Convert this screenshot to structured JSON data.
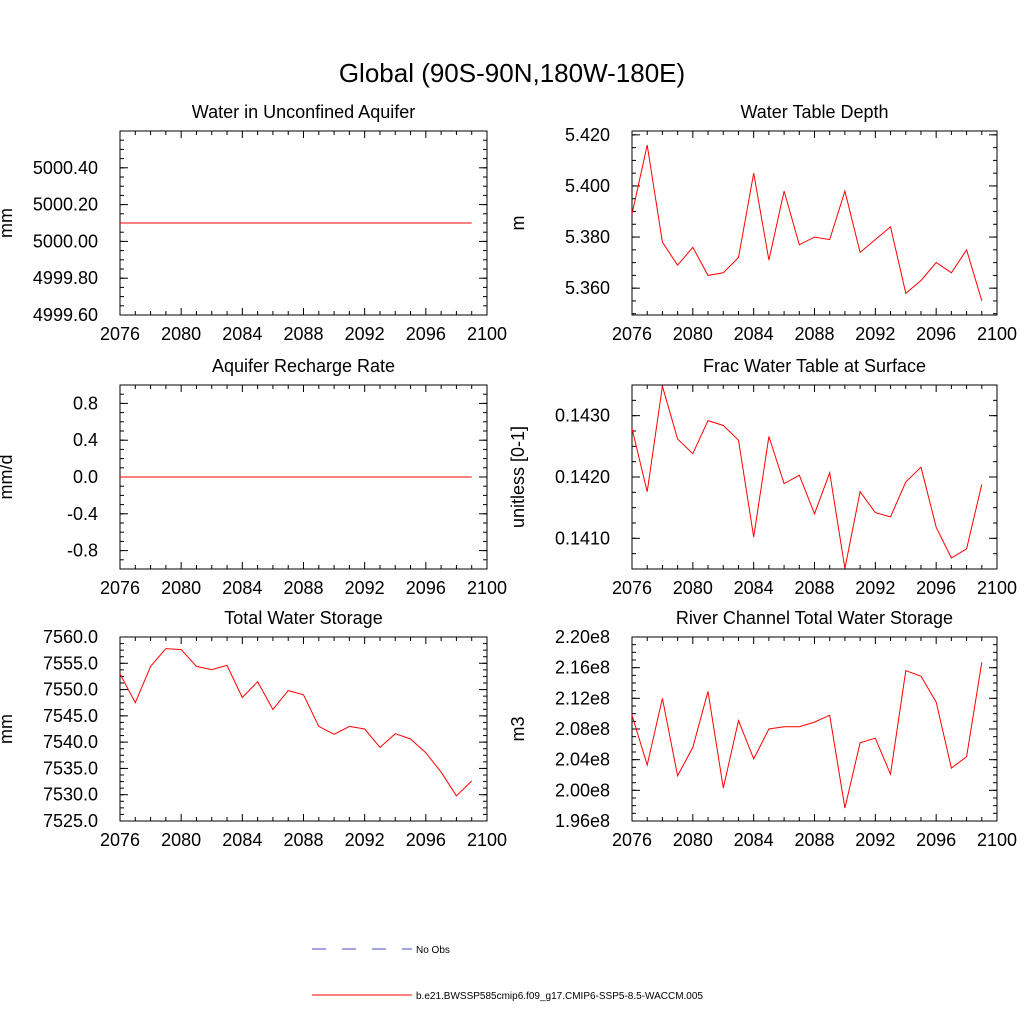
{
  "page_title": "Global (90S-90N,180W-180E)",
  "colors": {
    "series": "#ff0000",
    "obs": "#4a4acc",
    "axis": "#000000"
  },
  "legend": {
    "obs_label": "No Obs",
    "model_label": "b.e21.BWSSP585cmip6.f09_g17.CMIP6-SSP5-8.5-WACCM.005"
  },
  "chart_data": [
    {
      "type": "line",
      "title": "Water in Unconfined Aquifer",
      "ylabel": "mm",
      "xlim": [
        2076,
        2100
      ],
      "ylim": [
        4999.6,
        5000.6
      ],
      "xticks": [
        2076,
        2080,
        2084,
        2088,
        2092,
        2096,
        2100
      ],
      "yticks": [
        4999.6,
        4999.8,
        5000.0,
        5000.2,
        5000.4
      ],
      "ytick_labels": [
        "4999.60",
        "4999.80",
        "5000.00",
        "5000.20",
        "5000.40"
      ],
      "x": [
        2076,
        2077,
        2078,
        2079,
        2080,
        2081,
        2082,
        2083,
        2084,
        2085,
        2086,
        2087,
        2088,
        2089,
        2090,
        2091,
        2092,
        2093,
        2094,
        2095,
        2096,
        2097,
        2098,
        2099
      ],
      "values": [
        5000.1,
        5000.1,
        5000.1,
        5000.1,
        5000.1,
        5000.1,
        5000.1,
        5000.1,
        5000.1,
        5000.1,
        5000.1,
        5000.1,
        5000.1,
        5000.1,
        5000.1,
        5000.1,
        5000.1,
        5000.1,
        5000.1,
        5000.1,
        5000.1,
        5000.1,
        5000.1,
        5000.1
      ]
    },
    {
      "type": "line",
      "title": "Water Table Depth",
      "ylabel": "m",
      "xlim": [
        2076,
        2100
      ],
      "ylim": [
        5.3495,
        5.4215
      ],
      "xticks": [
        2076,
        2080,
        2084,
        2088,
        2092,
        2096,
        2100
      ],
      "yticks": [
        5.36,
        5.38,
        5.4,
        5.42
      ],
      "ytick_labels": [
        "5.360",
        "5.380",
        "5.400",
        "5.420"
      ],
      "x": [
        2076,
        2077,
        2078,
        2079,
        2080,
        2081,
        2082,
        2083,
        2084,
        2085,
        2086,
        2087,
        2088,
        2089,
        2090,
        2091,
        2092,
        2093,
        2094,
        2095,
        2096,
        2097,
        2098,
        2099
      ],
      "values": [
        5.389,
        5.416,
        5.378,
        5.369,
        5.376,
        5.365,
        5.366,
        5.372,
        5.405,
        5.371,
        5.398,
        5.377,
        5.38,
        5.379,
        5.398,
        5.374,
        5.379,
        5.384,
        5.358,
        5.363,
        5.37,
        5.366,
        5.375,
        5.355
      ]
    },
    {
      "type": "line",
      "title": "Aquifer Recharge Rate",
      "ylabel": "mm/d",
      "xlim": [
        2076,
        2100
      ],
      "ylim": [
        -1.0,
        1.0
      ],
      "xticks": [
        2076,
        2080,
        2084,
        2088,
        2092,
        2096,
        2100
      ],
      "yticks": [
        -0.8,
        -0.4,
        0.0,
        0.4,
        0.8
      ],
      "ytick_labels": [
        "-0.8",
        "-0.4",
        "0.0",
        "0.4",
        "0.8"
      ],
      "x": [
        2076,
        2077,
        2078,
        2079,
        2080,
        2081,
        2082,
        2083,
        2084,
        2085,
        2086,
        2087,
        2088,
        2089,
        2090,
        2091,
        2092,
        2093,
        2094,
        2095,
        2096,
        2097,
        2098,
        2099
      ],
      "values": [
        0,
        0,
        0,
        0,
        0,
        0,
        0,
        0,
        0,
        0,
        0,
        0,
        0,
        0,
        0,
        0,
        0,
        0,
        0,
        0,
        0,
        0,
        0,
        0
      ]
    },
    {
      "type": "line",
      "title": "Frac Water Table at Surface",
      "ylabel": "unitless [0-1]",
      "xlim": [
        2076,
        2100
      ],
      "ylim": [
        0.1405,
        0.1435
      ],
      "xticks": [
        2076,
        2080,
        2084,
        2088,
        2092,
        2096,
        2100
      ],
      "yticks": [
        0.141,
        0.142,
        0.143
      ],
      "ytick_labels": [
        "0.1410",
        "0.1420",
        "0.1430"
      ],
      "x": [
        2076,
        2077,
        2078,
        2079,
        2080,
        2081,
        2082,
        2083,
        2084,
        2085,
        2086,
        2087,
        2088,
        2089,
        2090,
        2091,
        2092,
        2093,
        2094,
        2095,
        2096,
        2097,
        2098,
        2099
      ],
      "values": [
        0.14279,
        0.14176,
        0.14348,
        0.14262,
        0.14238,
        0.14292,
        0.14284,
        0.1426,
        0.14102,
        0.14266,
        0.14189,
        0.14203,
        0.1414,
        0.14207,
        0.14051,
        0.14176,
        0.14142,
        0.14135,
        0.14192,
        0.14216,
        0.14118,
        0.14068,
        0.14083,
        0.14188
      ]
    },
    {
      "type": "line",
      "title": "Total Water Storage",
      "ylabel": "mm",
      "xlim": [
        2076,
        2100
      ],
      "ylim": [
        7525.0,
        7560.0
      ],
      "xticks": [
        2076,
        2080,
        2084,
        2088,
        2092,
        2096,
        2100
      ],
      "yticks": [
        7525,
        7530,
        7535,
        7540,
        7545,
        7550,
        7555,
        7560
      ],
      "ytick_labels": [
        "7525.0",
        "7530.0",
        "7535.0",
        "7540.0",
        "7545.0",
        "7550.0",
        "7555.0",
        "7560.0"
      ],
      "x": [
        2076,
        2077,
        2078,
        2079,
        2080,
        2081,
        2082,
        2083,
        2084,
        2085,
        2086,
        2087,
        2088,
        2089,
        2090,
        2091,
        2092,
        2093,
        2094,
        2095,
        2096,
        2097,
        2098,
        2099
      ],
      "values": [
        7553.0,
        7547.5,
        7554.4,
        7557.8,
        7557.6,
        7554.4,
        7553.8,
        7554.6,
        7548.5,
        7551.5,
        7546.2,
        7549.8,
        7549.0,
        7543.0,
        7541.5,
        7543.0,
        7542.5,
        7539.0,
        7541.6,
        7540.6,
        7538.0,
        7534.3,
        7529.8,
        7532.6
      ]
    },
    {
      "type": "line",
      "title": "River Channel Total Water Storage",
      "ylabel": "m3",
      "xlim": [
        2076,
        2100
      ],
      "ylim": [
        196000000,
        220000000
      ],
      "xticks": [
        2076,
        2080,
        2084,
        2088,
        2092,
        2096,
        2100
      ],
      "yticks": [
        196000000,
        200000000,
        204000000,
        208000000,
        212000000,
        216000000,
        220000000
      ],
      "ytick_labels": [
        "1.96e8",
        "2.00e8",
        "2.04e8",
        "2.08e8",
        "2.12e8",
        "2.16e8",
        "2.20e8"
      ],
      "x": [
        2076,
        2077,
        2078,
        2079,
        2080,
        2081,
        2082,
        2083,
        2084,
        2085,
        2086,
        2087,
        2088,
        2089,
        2090,
        2091,
        2092,
        2093,
        2094,
        2095,
        2096,
        2097,
        2098,
        2099
      ],
      "values": [
        209800000,
        203300000,
        212000000,
        201900000,
        205600000,
        212900000,
        200300000,
        209100000,
        204100000,
        208000000,
        208300000,
        208300000,
        208900000,
        209800000,
        197700000,
        206200000,
        206800000,
        202100000,
        215600000,
        214900000,
        211500000,
        202900000,
        204400000,
        216700000
      ]
    }
  ]
}
